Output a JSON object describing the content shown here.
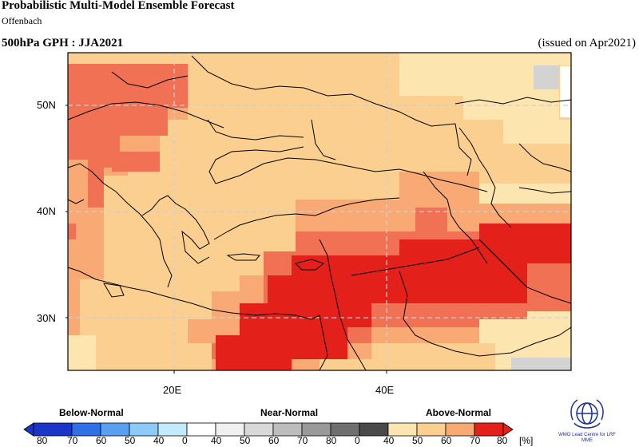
{
  "header": {
    "title": "Probabilistic Multi-Model Ensemble Forecast",
    "subtitle": "Offenbach",
    "field": "500hPa GPH : JJA2021",
    "issued": "(issued on Apr2021)"
  },
  "map": {
    "lat_labels": [
      "50N",
      "40N",
      "30N"
    ],
    "lon_labels": [
      "20E",
      "40E"
    ],
    "colors": {
      "near_normal": "#d3d3d3",
      "an40": "#fde5b0",
      "an50": "#fbcf8f",
      "an60": "#f8a974",
      "an70": "#f17155",
      "an80": "#e4201a",
      "border": "#000000",
      "grid": "#cfcfcf"
    }
  },
  "legend": {
    "below_label": "Below-Normal",
    "near_label": "Near-Normal",
    "above_label": "Above-Normal",
    "ticks": [
      "80",
      "70",
      "60",
      "50",
      "40",
      "0",
      "40",
      "50",
      "60",
      "70",
      "80",
      "0",
      "40",
      "50",
      "60",
      "70",
      "80"
    ],
    "unit": "[%]",
    "below_colors": [
      "#1a35c9",
      "#2f6fe8",
      "#5aa0f2",
      "#8ccbf7",
      "#c2ecfb"
    ],
    "near_colors": [
      "#f0f0f0",
      "#d9d9d9",
      "#bdbdbd",
      "#999999",
      "#6f6f6f",
      "#4a4a4a"
    ],
    "above_colors": [
      "#fde5b0",
      "#fbcf8f",
      "#f8a974",
      "#f17155",
      "#e4201a"
    ]
  },
  "logo": {
    "text": "WMO Lead Centre for LRF MME"
  }
}
